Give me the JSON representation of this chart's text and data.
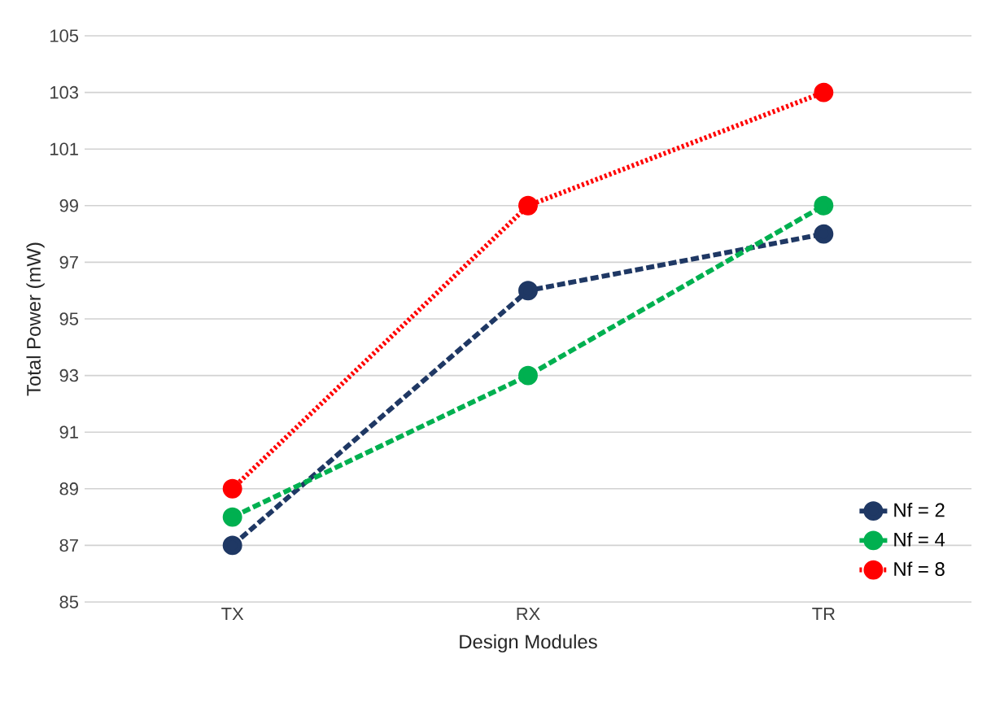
{
  "chart_data": {
    "type": "line",
    "xlabel": "Design Modules",
    "ylabel": "Total Power (mW)",
    "categories": [
      "TX",
      "RX",
      "TR"
    ],
    "series": [
      {
        "name": "Nf = 2",
        "color": "#1f3864",
        "values": [
          87,
          96,
          98
        ],
        "line_style": "dashed"
      },
      {
        "name": "Nf = 4",
        "color": "#00b050",
        "values": [
          88,
          93,
          99
        ],
        "line_style": "dashed"
      },
      {
        "name": "Nf = 8",
        "color": "#ff0000",
        "values": [
          89,
          99,
          103
        ],
        "line_style": "dotted"
      }
    ],
    "ylim": [
      85,
      105
    ],
    "yticks": [
      85,
      87,
      89,
      91,
      93,
      95,
      97,
      99,
      101,
      103,
      105
    ],
    "grid": "y",
    "legend": "bottom right",
    "marker": "circle"
  }
}
